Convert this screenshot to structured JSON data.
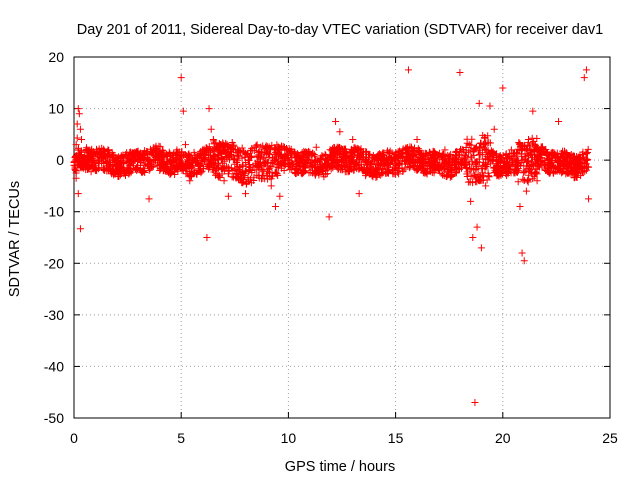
{
  "chart_data": {
    "type": "scatter",
    "title": "Day 201 of 2011, Sidereal Day-to-day VTEC variation (SDTVAR) for receiver dav1",
    "xlabel": "GPS time / hours",
    "ylabel": "SDTVAR / TECUs",
    "xlim": [
      0,
      25
    ],
    "ylim": [
      -50,
      20
    ],
    "xticks": [
      0,
      5,
      10,
      15,
      20,
      25
    ],
    "yticks": [
      20,
      10,
      0,
      -10,
      -20,
      -30,
      -40,
      -50
    ],
    "grid": true,
    "marker": "+",
    "color": "#ff0000",
    "series": [
      {
        "name": "SDTVAR",
        "x": [
          0.0,
          0.05,
          0.1,
          0.15,
          0.2,
          0.25,
          0.3,
          0.35,
          0.1,
          0.2,
          0.3,
          0.15,
          0.25,
          0.05,
          0.1,
          0.2,
          0.35,
          0.4,
          0.45,
          0.5,
          0.7,
          1.0,
          1.3,
          1.6,
          2.0,
          2.3,
          2.6,
          3.0,
          3.3,
          3.5,
          3.8,
          4.0,
          4.2,
          4.5,
          4.8,
          5.0,
          5.1,
          5.2,
          5.4,
          5.6,
          5.8,
          6.0,
          6.2,
          6.3,
          6.4,
          6.5,
          6.6,
          6.8,
          7.0,
          7.2,
          7.5,
          7.8,
          8.0,
          8.3,
          8.6,
          9.0,
          9.2,
          9.4,
          9.6,
          9.8,
          10.0,
          10.3,
          10.6,
          11.0,
          11.3,
          11.6,
          11.9,
          12.2,
          12.4,
          12.6,
          12.8,
          13.0,
          13.3,
          13.6,
          14.0,
          14.3,
          14.6,
          15.0,
          15.3,
          15.6,
          16.0,
          16.3,
          16.6,
          17.0,
          17.3,
          17.6,
          18.0,
          18.3,
          18.5,
          18.6,
          18.7,
          18.8,
          18.9,
          19.0,
          19.2,
          19.4,
          19.6,
          19.8,
          20.0,
          20.2,
          20.4,
          20.6,
          20.8,
          20.9,
          21.0,
          21.1,
          21.2,
          21.4,
          21.6,
          21.8,
          22.0,
          22.3,
          22.6,
          23.0,
          23.3,
          23.6,
          23.8,
          23.9,
          24.0
        ],
        "y": [
          -1,
          0.5,
          3,
          7,
          10,
          9,
          6,
          4,
          -3.5,
          -6.5,
          -13.3,
          4.3,
          1,
          -1.5,
          -2.5,
          2,
          1.5,
          -1,
          0.5,
          -1,
          2,
          -2,
          1,
          -1.5,
          0.5,
          -2,
          1.5,
          1,
          -1,
          -7.5,
          0.5,
          -2,
          1,
          -2.5,
          2,
          16,
          9.5,
          3,
          -4,
          1.5,
          -2,
          2,
          -15,
          10,
          6,
          4,
          -2,
          1.5,
          -4,
          -7,
          -2,
          -3.5,
          -6.5,
          -2,
          1,
          -3,
          -5,
          -9,
          -7,
          -2,
          0.5,
          1.5,
          -2.5,
          1.5,
          2.5,
          -2,
          -11,
          7.5,
          5.5,
          1,
          -2,
          4,
          -6.5,
          -3,
          -2.5,
          -0.5,
          1.5,
          0,
          -1.5,
          17.5,
          4,
          -1,
          1.5,
          -1,
          2,
          -1.5,
          17,
          1.5,
          -8,
          -15,
          -47,
          -13,
          11,
          -17,
          -5,
          10.5,
          6,
          -2,
          14,
          0.5,
          2,
          -2,
          -9,
          -18,
          -19.5,
          -6,
          4,
          9.5,
          -4,
          1,
          -2,
          1.5,
          7.5,
          0.5,
          -1.5,
          1,
          16,
          17.5,
          -7.5
        ]
      }
    ]
  }
}
